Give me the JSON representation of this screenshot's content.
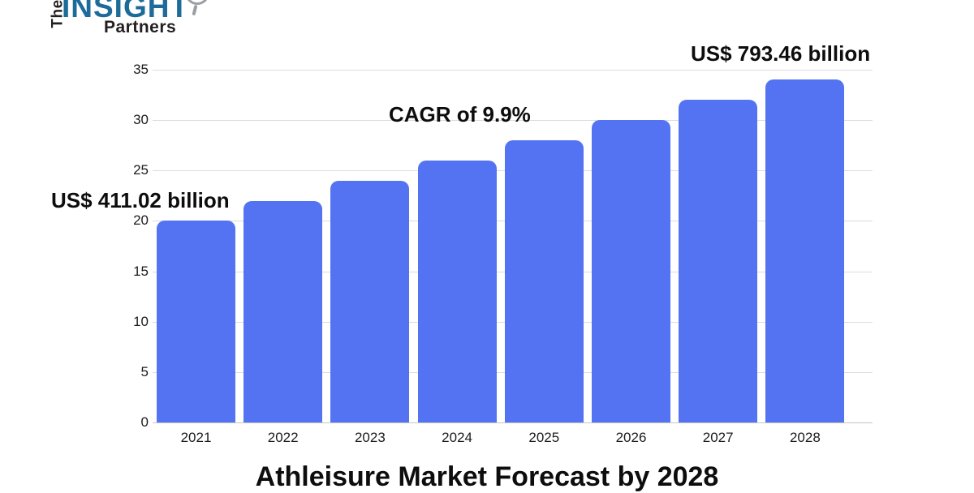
{
  "logo": {
    "the": "The",
    "insight": "INSIGHT",
    "partners": "Partners",
    "insight_color": "#1d6b99",
    "text_color": "#231f20"
  },
  "chart_data": {
    "type": "bar",
    "title": "Athleisure Market Forecast by 2028",
    "categories": [
      "2021",
      "2022",
      "2023",
      "2024",
      "2025",
      "2026",
      "2027",
      "2028"
    ],
    "values": [
      20,
      22,
      24,
      26,
      28,
      30,
      32,
      34
    ],
    "yticks": [
      0,
      5,
      10,
      15,
      20,
      25,
      30,
      35
    ],
    "ylim": [
      0,
      35
    ],
    "xlabel": "",
    "ylabel": "",
    "grid": true,
    "legend": false,
    "bar_color": "#5473F2",
    "gridline_color": "#dcdcdc",
    "annotations": [
      {
        "id": "value-2021",
        "text": "US$ 411.02 billion"
      },
      {
        "id": "cagr",
        "text": "CAGR of 9.9%"
      },
      {
        "id": "value-2028",
        "text": "US$ 793.46 billion"
      }
    ]
  }
}
